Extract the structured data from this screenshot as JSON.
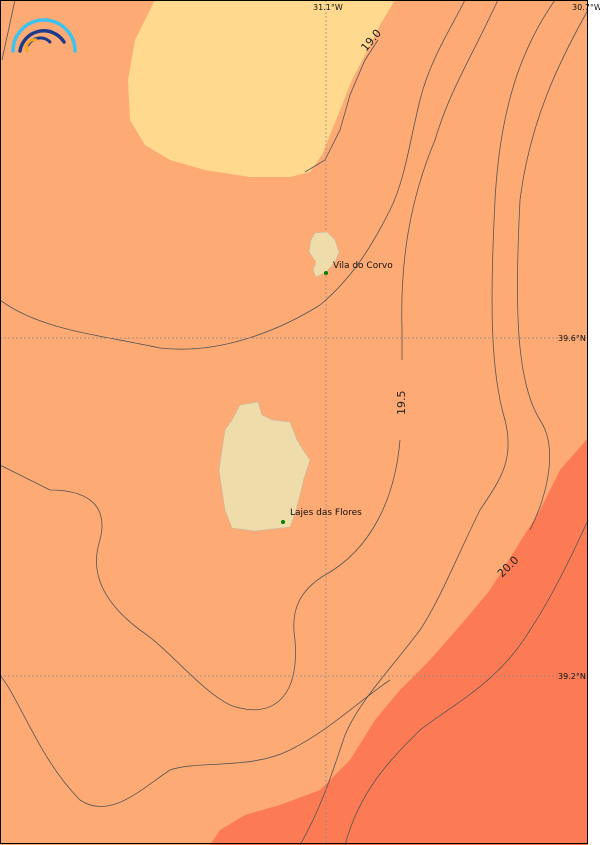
{
  "map": {
    "longitude_labels": [
      "31.1°W",
      "30.7°W"
    ],
    "latitude_labels": [
      "39.6°N",
      "39.2°N"
    ],
    "contour_labels": [
      "19.0",
      "19.5",
      "20.0"
    ],
    "places": [
      {
        "name": "Vila do Corvo"
      },
      {
        "name": "Lajes das Flores"
      }
    ],
    "colors": {
      "band_low": "#fed98e",
      "band_mid": "#fdaa74",
      "band_high": "#fd7b54",
      "land": "#eedcab",
      "place_marker": "#008000",
      "contour_line": "#555555",
      "gridline": "#888888"
    },
    "logo": "arc-logo"
  }
}
